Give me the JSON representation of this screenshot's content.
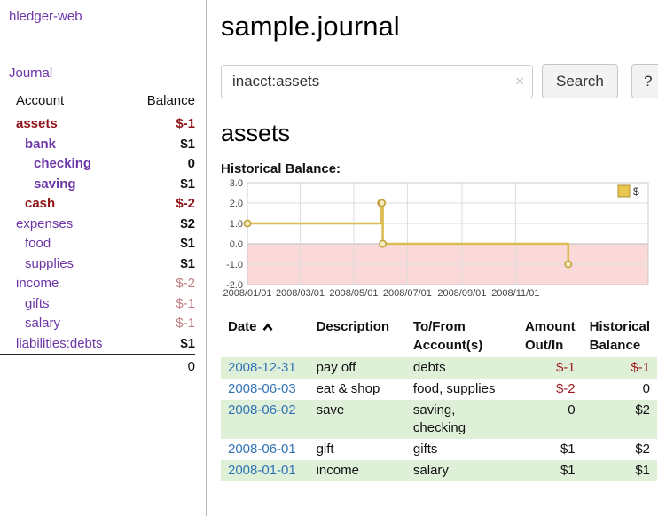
{
  "colors": {
    "link_purple": "#6d36a8",
    "negative_red": "#9e1a1c",
    "muted_negative": "#c08184",
    "date_link_blue": "#3273b7",
    "row_green": "#dff0d8",
    "chart_gold": "#dcbd55"
  },
  "sidebar": {
    "app_title": "hledger-web",
    "journal_label": "Journal",
    "accounts": {
      "col_account": "Account",
      "col_balance": "Balance",
      "rows": [
        {
          "name": "assets",
          "balance": "$-1",
          "indent": 0,
          "name_negative": true,
          "name_bold": true,
          "balance_negative": true,
          "balance_bold": true,
          "balance_muted": false
        },
        {
          "name": "bank",
          "balance": "$1",
          "indent": 1,
          "name_negative": false,
          "name_bold": true,
          "balance_negative": false,
          "balance_bold": true,
          "balance_muted": false
        },
        {
          "name": "checking",
          "balance": "0",
          "indent": 2,
          "name_negative": false,
          "name_bold": true,
          "balance_negative": false,
          "balance_bold": true,
          "balance_muted": false
        },
        {
          "name": "saving",
          "balance": "$1",
          "indent": 2,
          "name_negative": false,
          "name_bold": true,
          "balance_negative": false,
          "balance_bold": true,
          "balance_muted": false
        },
        {
          "name": "cash",
          "balance": "$-2",
          "indent": 1,
          "name_negative": true,
          "name_bold": true,
          "balance_negative": true,
          "balance_bold": true,
          "balance_muted": false
        },
        {
          "name": "expenses",
          "balance": "$2",
          "indent": 0,
          "name_negative": false,
          "name_bold": false,
          "balance_negative": false,
          "balance_bold": true,
          "balance_muted": false
        },
        {
          "name": "food",
          "balance": "$1",
          "indent": 1,
          "name_negative": false,
          "name_bold": false,
          "balance_negative": false,
          "balance_bold": true,
          "balance_muted": false
        },
        {
          "name": "supplies",
          "balance": "$1",
          "indent": 1,
          "name_negative": false,
          "name_bold": false,
          "balance_negative": false,
          "balance_bold": true,
          "balance_muted": false
        },
        {
          "name": "income",
          "balance": "$-2",
          "indent": 0,
          "name_negative": false,
          "name_bold": false,
          "balance_negative": false,
          "balance_bold": false,
          "balance_muted": true
        },
        {
          "name": "gifts",
          "balance": "$-1",
          "indent": 1,
          "name_negative": false,
          "name_bold": false,
          "balance_negative": false,
          "balance_bold": false,
          "balance_muted": true
        },
        {
          "name": "salary",
          "balance": "$-1",
          "indent": 1,
          "name_negative": false,
          "name_bold": false,
          "balance_negative": false,
          "balance_bold": false,
          "balance_muted": true
        },
        {
          "name": "liabilities:debts",
          "balance": "$1",
          "indent": 0,
          "name_negative": false,
          "name_bold": false,
          "balance_negative": false,
          "balance_bold": true,
          "balance_muted": false
        }
      ],
      "total": "0"
    }
  },
  "main": {
    "title": "sample.journal",
    "account_heading": "assets"
  },
  "search": {
    "query": "inacct:assets",
    "clear_icon": "×",
    "button_label": "Search",
    "help_label": "?"
  },
  "chart_data": {
    "type": "line",
    "step": true,
    "title": "Historical Balance:",
    "legend": [
      {
        "label": "$",
        "color": "#dcbd55"
      }
    ],
    "legend_position": "top-right",
    "grid": true,
    "x_domain": [
      "2008-01-01",
      "2009-04-01"
    ],
    "x_ticks": [
      "2008-01-01",
      "2008-03-01",
      "2008-05-01",
      "2008-07-01",
      "2008-09-01",
      "2008-11-01"
    ],
    "x_tick_labels": [
      "2008/01/01",
      "2008/03/01",
      "2008/05/01",
      "2008/07/01",
      "2008/09/01",
      "2008/11/01"
    ],
    "y_ticks": [
      3.0,
      2.0,
      1.0,
      0.0,
      -1.0,
      -2.0
    ],
    "ylim": [
      -2.0,
      3.0
    ],
    "negative_region": true,
    "series": [
      {
        "name": "$",
        "points": [
          {
            "date": "2008-01-01",
            "value": 1
          },
          {
            "date": "2008-06-01",
            "value": 2
          },
          {
            "date": "2008-06-02",
            "value": 2
          },
          {
            "date": "2008-06-03",
            "value": 0
          },
          {
            "date": "2008-12-31",
            "value": -1
          }
        ]
      }
    ],
    "colors": {
      "line": "#dcbd55",
      "marker_fill": "#f6ecc3",
      "marker_stroke": "#c3a23c",
      "negative_region": "#fbd9d9",
      "grid": "#dddddd",
      "zero_line": "#bbbbbb",
      "border": "#cccccc",
      "tick_text": "#444444",
      "legend_fill": "#e9c64f",
      "legend_stroke": "#b0922e"
    }
  },
  "register": {
    "columns": {
      "date": "Date",
      "description": "Description",
      "accounts": "To/From\nAccount(s)",
      "amount": "Amount\nOut/In",
      "balance": "Historical\nBalance"
    },
    "sort": {
      "column": "date",
      "direction": "ascending",
      "icon": "chevron-up-icon"
    },
    "rows": [
      {
        "date": "2008-12-31",
        "description": "pay off",
        "accounts": "debts",
        "amount": "$-1",
        "amount_negative": true,
        "balance": "$-1",
        "balance_negative": true
      },
      {
        "date": "2008-06-03",
        "description": "eat & shop",
        "accounts": "food, supplies",
        "amount": "$-2",
        "amount_negative": true,
        "balance": "0",
        "balance_negative": false
      },
      {
        "date": "2008-06-02",
        "description": "save",
        "accounts": "saving, checking",
        "amount": "0",
        "amount_negative": false,
        "balance": "$2",
        "balance_negative": false
      },
      {
        "date": "2008-06-01",
        "description": "gift",
        "accounts": "gifts",
        "amount": "$1",
        "amount_negative": false,
        "balance": "$2",
        "balance_negative": false
      },
      {
        "date": "2008-01-01",
        "description": "income",
        "accounts": "salary",
        "amount": "$1",
        "amount_negative": false,
        "balance": "$1",
        "balance_negative": false
      }
    ]
  }
}
